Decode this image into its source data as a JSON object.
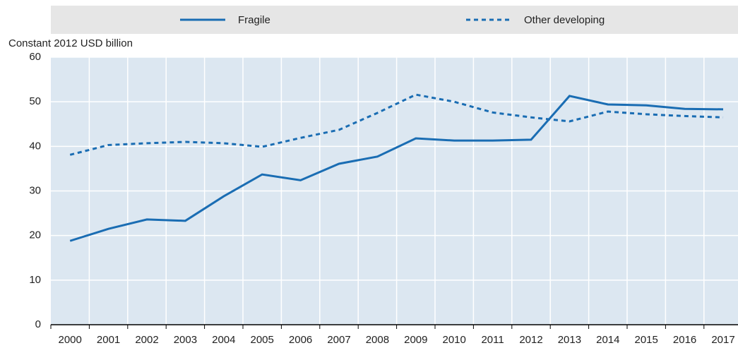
{
  "chart_data": {
    "type": "line",
    "y_label": "Constant 2012 USD billion",
    "categories": [
      "2000",
      "2001",
      "2002",
      "2003",
      "2004",
      "2005",
      "2006",
      "2007",
      "2008",
      "2009",
      "2010",
      "2011",
      "2012",
      "2013",
      "2014",
      "2015",
      "2016",
      "2017"
    ],
    "series": [
      {
        "name": "Fragile",
        "color": "#1a6db3",
        "dash": false,
        "values": [
          18.8,
          21.5,
          23.6,
          23.3,
          28.8,
          33.7,
          32.4,
          36.1,
          37.7,
          41.8,
          41.3,
          41.3,
          41.5,
          51.3,
          49.4,
          49.2,
          48.4,
          48.3
        ]
      },
      {
        "name": "Other developing",
        "color": "#1a6db3",
        "dash": true,
        "values": [
          38.1,
          40.3,
          40.7,
          41.0,
          40.7,
          39.9,
          41.9,
          43.7,
          47.5,
          51.6,
          50.0,
          47.6,
          46.5,
          45.6,
          47.8,
          47.2,
          46.8,
          46.5
        ]
      }
    ],
    "ylim": [
      0,
      60
    ],
    "yticks": [
      0,
      10,
      20,
      30,
      40,
      50,
      60
    ],
    "grid": true
  }
}
